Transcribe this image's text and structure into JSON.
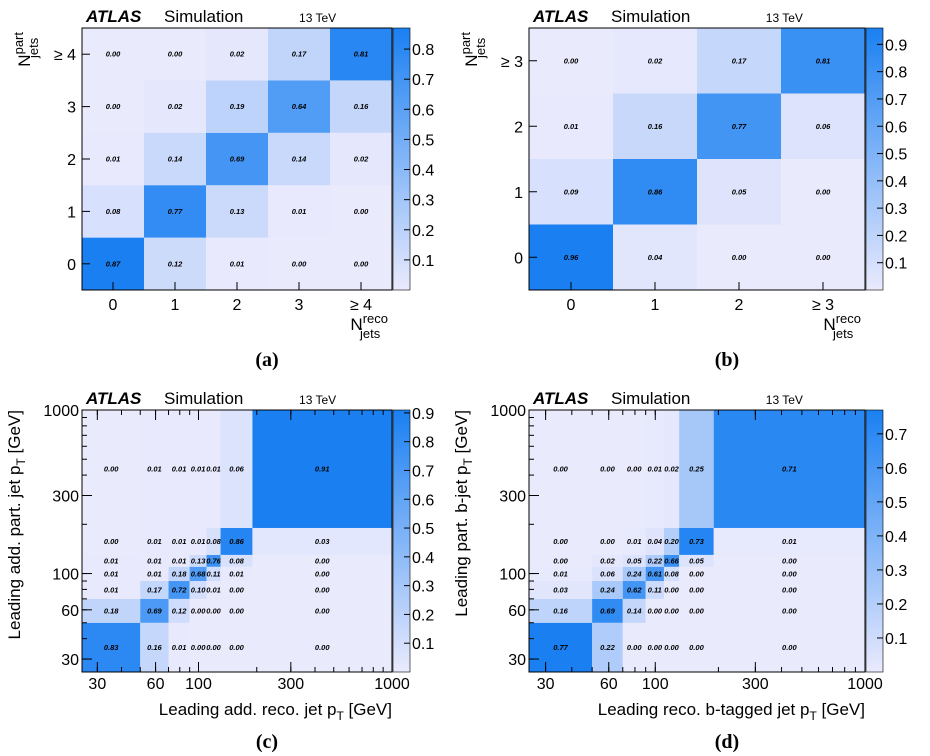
{
  "chart_data": [
    {
      "type": "heatmap",
      "panel": "(a)",
      "experiment": "ATLAS",
      "subtitle": "Simulation",
      "energy": "13 TeV",
      "xlabel": "N^{reco}_{jets}",
      "ylabel": "N^{part}_{jets}",
      "x_categories": [
        "0",
        "1",
        "2",
        "3",
        "≥ 4"
      ],
      "y_categories": [
        "0",
        "1",
        "2",
        "3",
        "≥ 4"
      ],
      "z": [
        [
          0.87,
          0.12,
          0.01,
          0.0,
          0.0
        ],
        [
          0.08,
          0.77,
          0.13,
          0.01,
          0.0
        ],
        [
          0.01,
          0.14,
          0.69,
          0.14,
          0.02
        ],
        [
          0.0,
          0.02,
          0.19,
          0.64,
          0.16
        ],
        [
          0.0,
          0.0,
          0.02,
          0.17,
          0.81
        ]
      ],
      "zlim": [
        0,
        0.87
      ],
      "colorbar_ticks": [
        "0.1",
        "0.2",
        "0.3",
        "0.4",
        "0.5",
        "0.6",
        "0.7",
        "0.8"
      ]
    },
    {
      "type": "heatmap",
      "panel": "(b)",
      "experiment": "ATLAS",
      "subtitle": "Simulation",
      "energy": "13 TeV",
      "xlabel": "N^{reco}_{jets}",
      "ylabel": "N^{part}_{jets}",
      "x_categories": [
        "0",
        "1",
        "2",
        "≥ 3"
      ],
      "y_categories": [
        "0",
        "1",
        "2",
        "≥ 3"
      ],
      "z": [
        [
          0.96,
          0.04,
          0.0,
          0.0
        ],
        [
          0.09,
          0.86,
          0.05,
          0.0
        ],
        [
          0.01,
          0.16,
          0.77,
          0.06
        ],
        [
          0.0,
          0.02,
          0.17,
          0.81
        ]
      ],
      "zlim": [
        0,
        0.96
      ],
      "colorbar_ticks": [
        "0.1",
        "0.2",
        "0.3",
        "0.4",
        "0.5",
        "0.6",
        "0.7",
        "0.8",
        "0.9"
      ]
    },
    {
      "type": "heatmap",
      "panel": "(c)",
      "experiment": "ATLAS",
      "subtitle": "Simulation",
      "energy": "13 TeV",
      "xlabel": "Leading add. reco. jet p_T [GeV]",
      "ylabel": "Leading add. part. jet p_T [GeV]",
      "log_axes": true,
      "bin_edges": [
        25,
        50,
        70,
        90,
        110,
        130,
        190,
        1000
      ],
      "x_ticks": [
        "30",
        "60",
        "100",
        "300",
        "1000"
      ],
      "y_ticks": [
        "30",
        "60",
        "100",
        "300",
        "1000"
      ],
      "z": [
        [
          0.83,
          0.16,
          0.01,
          0.0,
          0.0,
          0.0,
          0.0
        ],
        [
          0.18,
          0.69,
          0.12,
          0.0,
          0.0,
          0.0,
          0.0
        ],
        [
          0.01,
          0.17,
          0.72,
          0.1,
          0.01,
          0.0,
          0.0
        ],
        [
          0.01,
          0.01,
          0.18,
          0.68,
          0.11,
          0.01,
          0.0
        ],
        [
          0.01,
          0.01,
          0.01,
          0.13,
          0.76,
          0.08,
          0.0
        ],
        [
          0.0,
          0.01,
          0.01,
          0.01,
          0.08,
          0.86,
          0.03
        ],
        [
          0.0,
          0.01,
          0.01,
          0.01,
          0.01,
          0.06,
          0.91
        ]
      ],
      "zlim": [
        0,
        0.91
      ],
      "colorbar_ticks": [
        "0.1",
        "0.2",
        "0.3",
        "0.4",
        "0.5",
        "0.6",
        "0.7",
        "0.8",
        "0.9"
      ]
    },
    {
      "type": "heatmap",
      "panel": "(d)",
      "experiment": "ATLAS",
      "subtitle": "Simulation",
      "energy": "13 TeV",
      "xlabel": "Leading reco. b-tagged jet p_T [GeV]",
      "ylabel": "Leading part. b-jet p_T [GeV]",
      "log_axes": true,
      "bin_edges": [
        25,
        50,
        70,
        90,
        110,
        130,
        190,
        1000
      ],
      "x_ticks": [
        "30",
        "60",
        "100",
        "300",
        "1000"
      ],
      "y_ticks": [
        "30",
        "60",
        "100",
        "300",
        "1000"
      ],
      "z": [
        [
          0.77,
          0.22,
          0.0,
          0.0,
          0.0,
          0.0,
          0.0
        ],
        [
          0.16,
          0.69,
          0.14,
          0.0,
          0.0,
          0.0,
          0.0
        ],
        [
          0.03,
          0.24,
          0.62,
          0.11,
          0.0,
          0.0,
          0.0
        ],
        [
          0.01,
          0.06,
          0.24,
          0.61,
          0.08,
          0.0,
          0.0
        ],
        [
          0.0,
          0.02,
          0.05,
          0.22,
          0.66,
          0.05,
          0.0
        ],
        [
          0.0,
          0.0,
          0.01,
          0.04,
          0.2,
          0.73,
          0.01
        ],
        [
          0.0,
          0.0,
          0.0,
          0.01,
          0.02,
          0.25,
          0.71
        ]
      ],
      "zlim": [
        0,
        0.77
      ],
      "colorbar_ticks": [
        "0.1",
        "0.2",
        "0.3",
        "0.4",
        "0.5",
        "0.6",
        "0.7"
      ]
    }
  ],
  "colors": {
    "low": "#eaeafd",
    "high": "#1a80f2",
    "text": "#000000"
  }
}
